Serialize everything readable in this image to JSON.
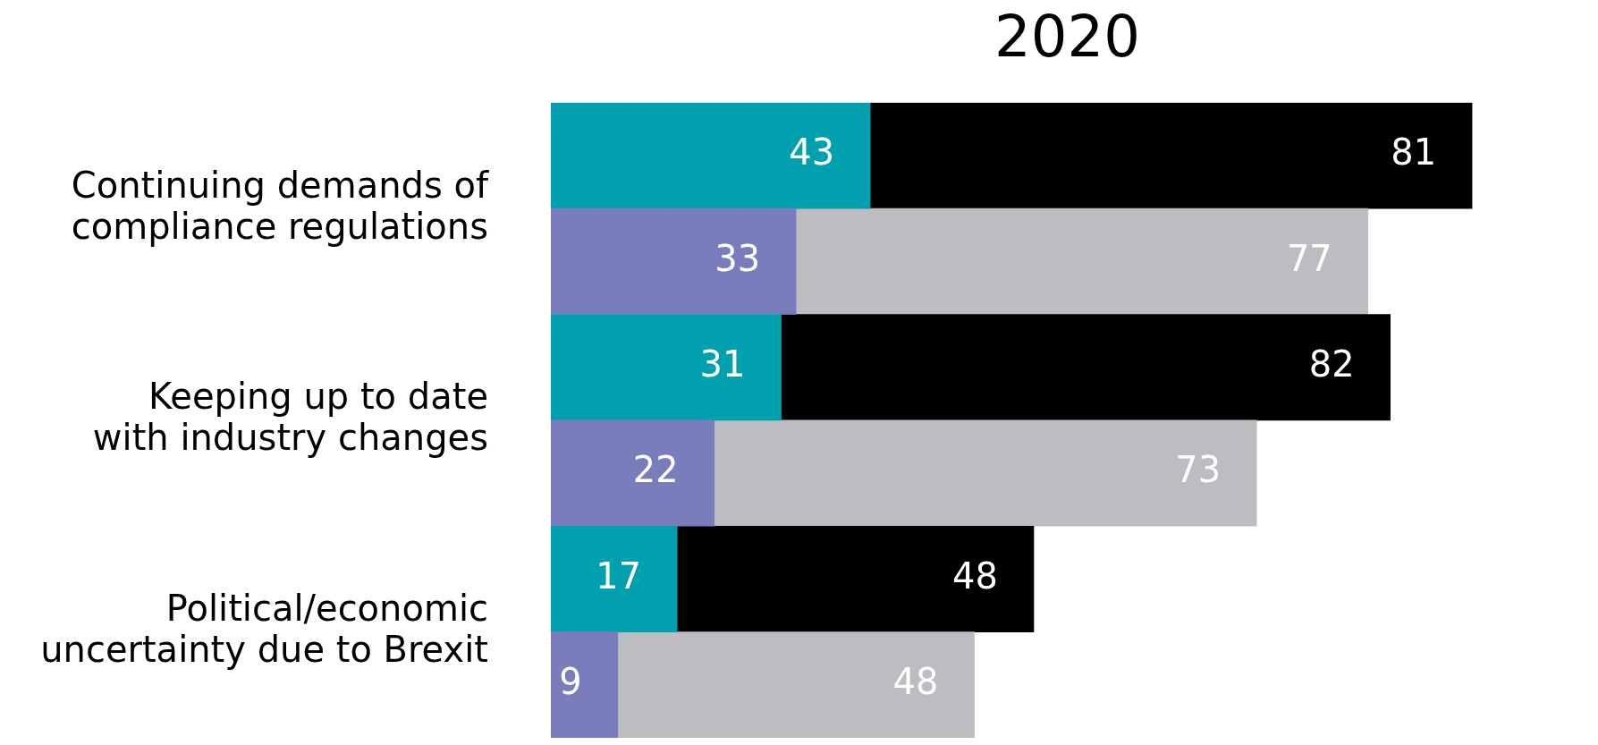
{
  "chart_data": {
    "type": "bar",
    "orientation": "horizontal",
    "stacked": true,
    "title": "2020",
    "categories": [
      "Continuing demands of compliance regulations",
      null,
      "Keeping up to date with industry changes",
      null,
      "Political/economic uncertainty due to Brexit",
      null
    ],
    "series": [
      {
        "colors": [
          "#00a0ae",
          "#7a7dbb",
          "#00a0ae",
          "#7a7dbb",
          "#00a0ae",
          "#7a7dbb"
        ],
        "values": [
          43,
          33,
          31,
          22,
          17,
          9
        ]
      },
      {
        "colors": [
          "#000000",
          "#bcbdc0",
          "#000000",
          "#bcbdc0",
          "#000000",
          "#bcbdc0"
        ],
        "values": [
          81,
          77,
          82,
          73,
          48,
          48
        ]
      }
    ],
    "data_labels": true,
    "grid": false,
    "legend": false
  }
}
